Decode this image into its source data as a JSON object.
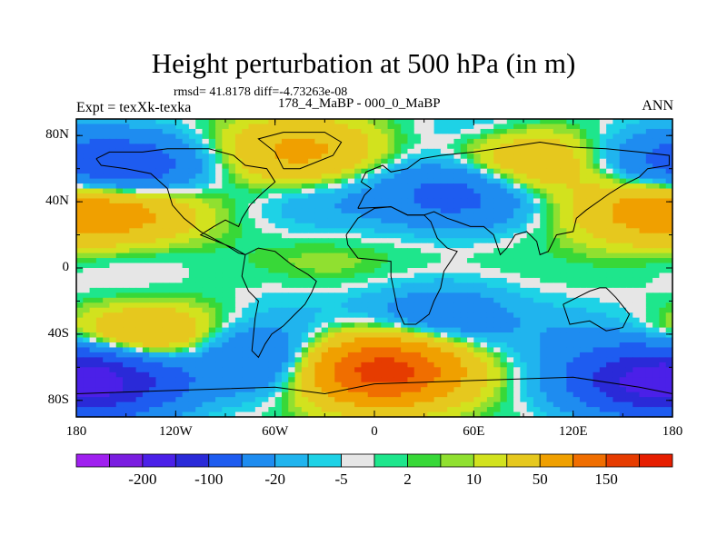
{
  "title": "Height perturbation at 500 hPa (in m)",
  "stats": "rmsd= 41.8178 diff=-4.73263e-08",
  "left_label": "Expt = texXk-texka",
  "center_label": "178_4_MaBP - 000_0_MaBP",
  "right_label": "ANN",
  "chart_data": {
    "type": "heatmap",
    "title": "Height perturbation at 500 hPa (in m)",
    "xlim": [
      -180,
      180
    ],
    "ylim": [
      -90,
      90
    ],
    "x_ticks": [
      {
        "value": -180,
        "label": "180"
      },
      {
        "value": -120,
        "label": "120W"
      },
      {
        "value": -60,
        "label": "60W"
      },
      {
        "value": 0,
        "label": "0"
      },
      {
        "value": 60,
        "label": "60E"
      },
      {
        "value": 120,
        "label": "120E"
      },
      {
        "value": 180,
        "label": "180"
      }
    ],
    "y_ticks": [
      {
        "value": 80,
        "label": "80N"
      },
      {
        "value": 40,
        "label": "40N"
      },
      {
        "value": 0,
        "label": "0"
      },
      {
        "value": -40,
        "label": "40S"
      },
      {
        "value": -80,
        "label": "80S"
      }
    ],
    "colorbar": {
      "colors": [
        "#a020f0",
        "#7a1de0",
        "#4b20e8",
        "#2a2ad8",
        "#1e5cf0",
        "#1e8cf0",
        "#20b4ee",
        "#1ed2e6",
        "#e6e6e6",
        "#1ee68c",
        "#38d838",
        "#90e030",
        "#d2e21e",
        "#e6c81e",
        "#f0a000",
        "#f06e00",
        "#e63c00",
        "#e61e00"
      ],
      "labels": [
        {
          "after_index": 1,
          "text": "-200"
        },
        {
          "after_index": 3,
          "text": "-100"
        },
        {
          "after_index": 5,
          "text": "-20"
        },
        {
          "after_index": 7,
          "text": "-5"
        },
        {
          "after_index": 9,
          "text": "2"
        },
        {
          "after_index": 11,
          "text": "10"
        },
        {
          "after_index": 13,
          "text": "50"
        },
        {
          "after_index": 15,
          "text": "150"
        }
      ]
    },
    "field_features": [
      {
        "lon": -150,
        "lat": 60,
        "level": -90
      },
      {
        "lon": -150,
        "lat": 35,
        "level": 65
      },
      {
        "lon": -150,
        "lat": 10,
        "level": -8
      },
      {
        "lon": -150,
        "lat": -25,
        "level": -10
      },
      {
        "lon": -140,
        "lat": -42,
        "level": 70
      },
      {
        "lon": -160,
        "lat": -68,
        "level": -130
      },
      {
        "lon": -70,
        "lat": -55,
        "level": -60
      },
      {
        "lon": -45,
        "lat": 70,
        "level": 60
      },
      {
        "lon": -30,
        "lat": 40,
        "level": -20
      },
      {
        "lon": -30,
        "lat": 0,
        "level": 10
      },
      {
        "lon": -40,
        "lat": -20,
        "level": -10
      },
      {
        "lon": 5,
        "lat": -62,
        "level": 180
      },
      {
        "lon": 50,
        "lat": 45,
        "level": -70
      },
      {
        "lon": 70,
        "lat": 80,
        "level": -20
      },
      {
        "lon": 40,
        "lat": -30,
        "level": -40
      },
      {
        "lon": 90,
        "lat": 0,
        "level": 1
      },
      {
        "lon": 90,
        "lat": 65,
        "level": 60
      },
      {
        "lon": 165,
        "lat": 65,
        "level": -30
      },
      {
        "lon": 165,
        "lat": 35,
        "level": 60
      },
      {
        "lon": 160,
        "lat": -68,
        "level": -120
      },
      {
        "lon": 120,
        "lat": -40,
        "level": -15
      }
    ]
  }
}
